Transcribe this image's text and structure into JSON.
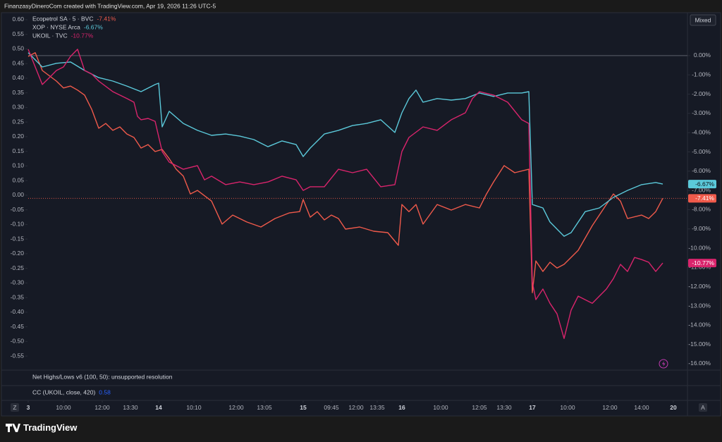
{
  "header": {
    "attribution": "FinanzasyDineroCom created with TradingView.com, Apr 19, 2026 11:26 UTC-5",
    "scale_mode": "Mixed",
    "logo": "TradingView",
    "left_control": "Z",
    "right_control": "A"
  },
  "chart_data": {
    "type": "line",
    "xlim": [
      0,
      187
    ],
    "xticks": [
      {
        "value": 0,
        "label": "3"
      },
      {
        "value": 10,
        "label": "10:00"
      },
      {
        "value": 21,
        "label": "12:00"
      },
      {
        "value": 29,
        "label": "13:30"
      },
      {
        "value": 37,
        "label": "14"
      },
      {
        "value": 47,
        "label": "10:10"
      },
      {
        "value": 59,
        "label": "12:00"
      },
      {
        "value": 67,
        "label": "13:05"
      },
      {
        "value": 78,
        "label": "15"
      },
      {
        "value": 86,
        "label": "09:45"
      },
      {
        "value": 93,
        "label": "12:00"
      },
      {
        "value": 99,
        "label": "13:35"
      },
      {
        "value": 106,
        "label": "16"
      },
      {
        "value": 117,
        "label": "10:00"
      },
      {
        "value": 128,
        "label": "12:05"
      },
      {
        "value": 135,
        "label": "13:30"
      },
      {
        "value": 143,
        "label": "17"
      },
      {
        "value": 153,
        "label": "10:00"
      },
      {
        "value": 165,
        "label": "12:00"
      },
      {
        "value": 174,
        "label": "14:00"
      },
      {
        "value": 183,
        "label": "20"
      }
    ],
    "ylim": [
      -0.598,
      0.624
    ],
    "yticks": [
      {
        "value": 0.6,
        "label": "0.60"
      },
      {
        "value": 0.55,
        "label": "0.55"
      },
      {
        "value": 0.5,
        "label": "0.50"
      },
      {
        "value": 0.45,
        "label": "0.45"
      },
      {
        "value": 0.4,
        "label": "0.40"
      },
      {
        "value": 0.35,
        "label": "0.35"
      },
      {
        "value": 0.3,
        "label": "0.30"
      },
      {
        "value": 0.25,
        "label": "0.25"
      },
      {
        "value": 0.2,
        "label": "0.20"
      },
      {
        "value": 0.15,
        "label": "0.15"
      },
      {
        "value": 0.1,
        "label": "0.10"
      },
      {
        "value": 0.05,
        "label": "0.05"
      },
      {
        "value": 0,
        "label": "0.00"
      },
      {
        "value": -0.05,
        "label": "-0.05"
      },
      {
        "value": -0.1,
        "label": "-0.10"
      },
      {
        "value": -0.15,
        "label": "-0.15"
      },
      {
        "value": -0.2,
        "label": "-0.20"
      },
      {
        "value": -0.25,
        "label": "-0.25"
      },
      {
        "value": -0.3,
        "label": "-0.30"
      },
      {
        "value": -0.35,
        "label": "-0.35"
      },
      {
        "value": -0.4,
        "label": "-0.40"
      },
      {
        "value": -0.45,
        "label": "-0.45"
      },
      {
        "value": -0.5,
        "label": "-0.50"
      },
      {
        "value": -0.55,
        "label": "-0.55"
      }
    ],
    "y2lim": [
      -16.33,
      2.23
    ],
    "y2ticks": [
      {
        "value": 0,
        "label": "0.00%"
      },
      {
        "value": -1,
        "label": "-1.00%"
      },
      {
        "value": -2,
        "label": "-2.00%"
      },
      {
        "value": -3,
        "label": "-3.00%"
      },
      {
        "value": -4,
        "label": "-4.00%"
      },
      {
        "value": -5,
        "label": "-5.00%"
      },
      {
        "value": -6,
        "label": "-6.00%"
      },
      {
        "value": -7,
        "label": "-7.00%"
      },
      {
        "value": -8,
        "label": "-8.00%"
      },
      {
        "value": -9,
        "label": "-9.00%"
      },
      {
        "value": -10,
        "label": "-10.00%"
      },
      {
        "value": -11,
        "label": "-11.00%"
      },
      {
        "value": -12,
        "label": "-12.00%"
      },
      {
        "value": -13,
        "label": "-13.00%"
      },
      {
        "value": -14,
        "label": "-14.00%"
      },
      {
        "value": -15,
        "label": "-15.00%"
      },
      {
        "value": -16,
        "label": "-16.00%"
      }
    ],
    "series": [
      {
        "name": "Ecopetrol SA · 5 · BVC",
        "change_label": "-7.41%",
        "color": "#f05a4b",
        "axis": "y2",
        "x": [
          0,
          2,
          4,
          8,
          10,
          12,
          14,
          16,
          18,
          20,
          22,
          24,
          26,
          28,
          30,
          32,
          34,
          36,
          38,
          40,
          42,
          44,
          46,
          48,
          52,
          55,
          58,
          62,
          66,
          70,
          74,
          77,
          78,
          80,
          82,
          84,
          86,
          88,
          90,
          94,
          98,
          102,
          105,
          106,
          108,
          110,
          112,
          116,
          120,
          124,
          128,
          130,
          132,
          135,
          138,
          142,
          143,
          144,
          146,
          148,
          150,
          152,
          156,
          160,
          164,
          166,
          168,
          170,
          174,
          176,
          178,
          180
        ],
        "values": [
          -0.04,
          0.15,
          -0.77,
          -1.32,
          -1.68,
          -1.58,
          -1.79,
          -2.05,
          -2.78,
          -3.77,
          -3.52,
          -3.88,
          -3.7,
          -4.07,
          -4.25,
          -4.8,
          -4.62,
          -4.98,
          -4.87,
          -5.35,
          -5.9,
          -6.26,
          -7.18,
          -7.0,
          -7.55,
          -8.75,
          -8.28,
          -8.64,
          -8.9,
          -8.46,
          -8.17,
          -8.1,
          -7.47,
          -8.39,
          -8.1,
          -8.53,
          -8.28,
          -8.46,
          -9.01,
          -8.9,
          -9.12,
          -9.19,
          -9.85,
          -7.73,
          -8.1,
          -7.73,
          -8.75,
          -7.73,
          -8.02,
          -7.73,
          -7.91,
          -7.18,
          -6.56,
          -5.71,
          -6.08,
          -5.9,
          -12.31,
          -10.66,
          -11.21,
          -10.73,
          -11.03,
          -10.84,
          -10.11,
          -8.83,
          -7.73,
          -7.18,
          -7.55,
          -8.46,
          -8.28,
          -8.46,
          -8.1,
          -7.41
        ]
      },
      {
        "name": "XOP · NYSE Arca",
        "change_label": "-6.67%",
        "color": "#5bc9da",
        "axis": "y2",
        "x": [
          0,
          4,
          8,
          12,
          16,
          20,
          24,
          28,
          32,
          36,
          37,
          38,
          40,
          44,
          48,
          52,
          56,
          60,
          64,
          68,
          72,
          76,
          78,
          80,
          84,
          88,
          92,
          96,
          100,
          104,
          106,
          108,
          110,
          112,
          116,
          120,
          124,
          128,
          132,
          136,
          140,
          142,
          143,
          146,
          148,
          152,
          154,
          158,
          162,
          166,
          170,
          174,
          178,
          180
        ],
        "values": [
          0.15,
          -0.59,
          -0.4,
          -0.33,
          -0.77,
          -1.14,
          -1.32,
          -1.58,
          -1.87,
          -1.5,
          -1.43,
          -3.7,
          -2.89,
          -3.52,
          -3.88,
          -4.14,
          -4.07,
          -4.18,
          -4.36,
          -4.73,
          -4.43,
          -4.62,
          -5.24,
          -4.8,
          -4.07,
          -3.88,
          -3.63,
          -3.52,
          -3.33,
          -3.99,
          -2.97,
          -2.23,
          -1.79,
          -2.42,
          -2.23,
          -2.31,
          -2.23,
          -1.94,
          -2.12,
          -1.94,
          -1.94,
          -1.87,
          -7.73,
          -7.91,
          -8.64,
          -9.38,
          -9.19,
          -8.1,
          -7.91,
          -7.36,
          -7.0,
          -6.7,
          -6.59,
          -6.67
        ]
      },
      {
        "name": "UKOIL · TVC",
        "change_label": "-10.77%",
        "color": "#d9246c",
        "axis": "y2",
        "x": [
          0,
          2,
          4,
          6,
          8,
          10,
          12,
          14,
          16,
          18,
          20,
          24,
          28,
          30,
          31,
          32,
          34,
          36,
          38,
          40,
          44,
          48,
          50,
          52,
          56,
          60,
          64,
          68,
          72,
          76,
          78,
          80,
          84,
          88,
          92,
          96,
          100,
          104,
          106,
          108,
          112,
          116,
          120,
          124,
          126,
          128,
          132,
          136,
          140,
          142,
          143,
          144,
          146,
          148,
          150,
          152,
          154,
          156,
          160,
          164,
          166,
          168,
          170,
          172,
          174,
          176,
          178,
          180
        ],
        "values": [
          0.33,
          -0.59,
          -1.5,
          -1.14,
          -0.77,
          -0.59,
          -0.04,
          0.33,
          -0.77,
          -0.95,
          -1.32,
          -1.87,
          -2.23,
          -2.42,
          -3.15,
          -3.33,
          -3.26,
          -3.41,
          -4.98,
          -5.53,
          -5.9,
          -5.71,
          -6.45,
          -6.26,
          -6.7,
          -6.56,
          -6.7,
          -6.56,
          -6.26,
          -6.45,
          -7.0,
          -6.81,
          -6.81,
          -5.9,
          -6.08,
          -5.9,
          -6.81,
          -6.7,
          -4.98,
          -4.25,
          -3.7,
          -3.88,
          -3.33,
          -2.97,
          -2.23,
          -1.87,
          -2.05,
          -2.42,
          -3.33,
          -3.52,
          -11.76,
          -12.67,
          -12.12,
          -12.86,
          -13.41,
          -14.69,
          -13.22,
          -12.49,
          -12.86,
          -12.12,
          -11.58,
          -10.84,
          -11.21,
          -10.48,
          -10.59,
          -10.73,
          -11.21,
          -10.77
        ]
      }
    ],
    "indicators": [
      {
        "name": "Net Highs/Lows v6 (100, 50): unsupported resolution"
      },
      {
        "name": "CC (UKOIL, close, 420)",
        "value": 0.58
      }
    ]
  }
}
